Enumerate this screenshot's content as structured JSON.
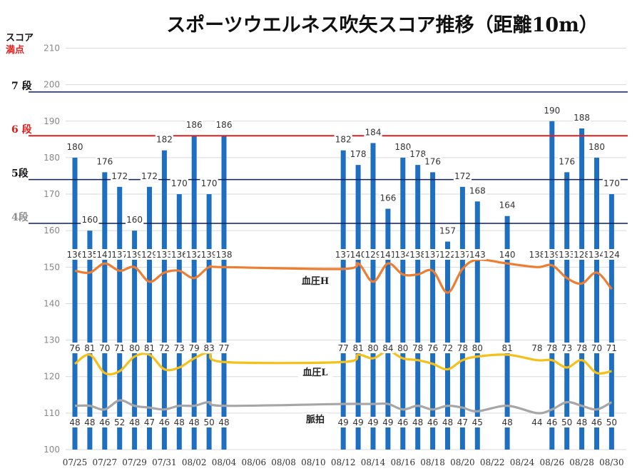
{
  "title": "スポーツウエルネス吹矢スコア推移（距離10m）",
  "score_label": "スコア",
  "full_score_label": "満点",
  "colors": {
    "bar": "#1f6fc0",
    "bp_high": "#ed7d31",
    "bp_low": "#f5c018",
    "pulse": "#a6a6a6",
    "rank_7": "#0d1f5c",
    "rank_6": "#e01e1e",
    "rank_5": "#0d1f5c",
    "rank_4": "#0d1f5c",
    "rank_4_label": "#8e8e8e",
    "full_score": "#e01e1e",
    "grid": "#d9d9d9"
  },
  "rank_lines": [
    {
      "label": "7 段",
      "value": 198,
      "color_key": "rank_7"
    },
    {
      "label": "6 段",
      "value": 186,
      "color_key": "rank_6"
    },
    {
      "label": "5段",
      "value": 174,
      "color_key": "rank_5"
    },
    {
      "label": "4段",
      "value": 162,
      "color_key": "rank_4"
    }
  ],
  "chart_data": {
    "type": "bar",
    "title": "スポーツウエルネス吹矢スコア推移（距離10m）",
    "ylim": [
      100,
      210
    ],
    "yticks": [
      100,
      110,
      120,
      130,
      140,
      150,
      160,
      170,
      180,
      190,
      200,
      210
    ],
    "grid": true,
    "x_tick_labels": [
      "07/25",
      "07/27",
      "07/29",
      "07/31",
      "08/02",
      "08/04",
      "08/06",
      "08/08",
      "08/10",
      "08/12",
      "08/14",
      "08/16",
      "08/18",
      "08/20",
      "08/22",
      "08/24",
      "08/26",
      "08/28",
      "08/30"
    ],
    "x": [
      "07/25",
      "07/26",
      "07/27",
      "07/28",
      "07/29",
      "07/30",
      "07/31",
      "08/01",
      "08/02",
      "08/03",
      "08/04",
      "08/05",
      "08/06",
      "08/07",
      "08/08",
      "08/09",
      "08/10",
      "08/11",
      "08/12",
      "08/13",
      "08/14",
      "08/15",
      "08/16",
      "08/17",
      "08/18",
      "08/19",
      "08/20",
      "08/21",
      "08/22",
      "08/23",
      "08/24",
      "08/25",
      "08/26",
      "08/27",
      "08/28",
      "08/29",
      "08/30"
    ],
    "score": [
      180,
      160,
      176,
      172,
      160,
      172,
      182,
      170,
      186,
      170,
      186,
      null,
      null,
      null,
      null,
      null,
      null,
      null,
      182,
      178,
      184,
      166,
      180,
      178,
      176,
      157,
      172,
      168,
      null,
      164,
      null,
      null,
      190,
      176,
      188,
      180,
      170
    ],
    "score_labels": [
      "180",
      "160",
      "176",
      "172",
      "160",
      "172",
      "182",
      "170",
      "186",
      "170",
      "186",
      "",
      "",
      "",
      "",
      "",
      "",
      "",
      "182",
      "178",
      "184",
      "166",
      "180",
      "178",
      "176",
      "157",
      "172",
      "168",
      "",
      "164",
      "",
      "",
      "190",
      "176",
      "188",
      "180",
      "170"
    ],
    "overlay_series": [
      {
        "name": "血圧H",
        "color_key": "bp_high",
        "values": [
          136,
          135,
          141,
          137,
          139,
          129,
          133,
          136,
          132,
          139,
          138,
          null,
          null,
          null,
          null,
          null,
          null,
          null,
          137,
          140,
          129,
          141,
          134,
          138,
          137,
          122,
          137,
          143,
          null,
          140,
          null,
          138,
          139,
          133,
          128,
          134,
          124
        ],
        "labels": [
          "136",
          "135",
          "141",
          "137",
          "139",
          "129",
          "133",
          "136",
          "132",
          "139",
          "138",
          "",
          "",
          "",
          "",
          "",
          "",
          "",
          "137",
          "140",
          "129",
          "141",
          "134",
          "138",
          "137",
          "122",
          "137",
          "143",
          "",
          "140",
          "",
          "138",
          "139",
          "133",
          "128",
          "134",
          "124"
        ],
        "line_y": [
          149,
          148.5,
          151,
          149,
          150,
          146,
          148.5,
          149,
          147,
          150,
          150,
          null,
          null,
          null,
          null,
          null,
          null,
          null,
          149.5,
          151,
          146,
          151,
          148,
          148,
          149,
          143,
          149.5,
          152,
          null,
          151,
          null,
          150,
          150.5,
          147,
          145.5,
          148.5,
          144
        ],
        "line_x_index": [
          0,
          1,
          2,
          3,
          4,
          5,
          6,
          7,
          8,
          9,
          10,
          null,
          null,
          null,
          null,
          null,
          null,
          null,
          18,
          19,
          20,
          21,
          22,
          23,
          24,
          25,
          26,
          27,
          null,
          29,
          null,
          31,
          32,
          33,
          34,
          35,
          36
        ]
      },
      {
        "name": "血圧L",
        "color_key": "bp_low",
        "values": [
          76,
          81,
          70,
          71,
          80,
          81,
          72,
          73,
          79,
          83,
          77,
          null,
          null,
          null,
          null,
          null,
          null,
          null,
          77,
          81,
          80,
          84,
          80,
          78,
          76,
          72,
          78,
          80,
          null,
          81,
          null,
          78,
          78,
          73,
          78,
          70,
          71
        ],
        "labels": [
          "76",
          "81",
          "70",
          "71",
          "80",
          "81",
          "72",
          "73",
          "79",
          "83",
          "77",
          "",
          "",
          "",
          "",
          "",
          "",
          "",
          "77",
          "81",
          "80",
          "84",
          "80",
          "78",
          "76",
          "72",
          "78",
          "80",
          "",
          "81",
          "",
          "78",
          "78",
          "73",
          "78",
          "70",
          "71"
        ],
        "line_y": [
          123.5,
          126,
          121,
          121.5,
          125.5,
          126,
          122,
          122.5,
          125,
          126.5,
          124,
          null,
          null,
          null,
          null,
          null,
          null,
          null,
          124,
          126,
          125,
          127,
          125,
          124.5,
          123.5,
          122,
          124.5,
          125.5,
          null,
          126,
          null,
          124.5,
          124.5,
          122.5,
          124.5,
          121,
          121.5
        ]
      },
      {
        "name": "脈拍",
        "color_key": "pulse",
        "values": [
          48,
          48,
          46,
          52,
          48,
          47,
          46,
          48,
          48,
          50,
          48,
          null,
          null,
          null,
          null,
          null,
          null,
          null,
          49,
          49,
          49,
          49,
          46,
          48,
          46,
          48,
          47,
          45,
          null,
          48,
          null,
          44,
          46,
          50,
          48,
          46,
          50
        ],
        "labels": [
          "48",
          "48",
          "46",
          "52",
          "48",
          "47",
          "46",
          "48",
          "48",
          "50",
          "48",
          "",
          "",
          "",
          "",
          "",
          "",
          "",
          "49",
          "49",
          "49",
          "49",
          "46",
          "48",
          "46",
          "48",
          "47",
          "45",
          "",
          "48",
          "",
          "44",
          "46",
          "50",
          "48",
          "46",
          "50"
        ],
        "line_y": [
          112,
          112,
          111,
          113.5,
          112,
          111.5,
          111,
          112,
          112,
          113,
          112,
          null,
          null,
          null,
          null,
          null,
          null,
          null,
          112.5,
          112.5,
          112.5,
          112.5,
          111,
          112,
          111,
          112,
          111.5,
          110.5,
          null,
          112,
          null,
          110,
          111,
          113,
          112,
          111,
          113
        ]
      }
    ]
  }
}
